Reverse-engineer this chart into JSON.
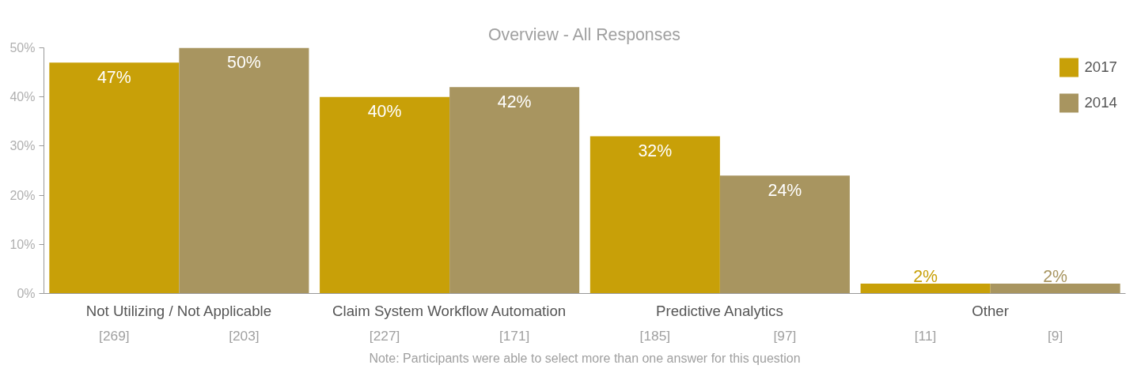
{
  "chart_data": {
    "type": "bar",
    "title": "Overview - All Responses",
    "categories": [
      "Not Utilizing / Not Applicable",
      "Claim System Workflow Automation",
      "Predictive Analytics",
      "Other"
    ],
    "series": [
      {
        "name": "2017",
        "color": "#c8a008",
        "values": [
          47,
          40,
          32,
          2
        ]
      },
      {
        "name": "2014",
        "color": "#a89560",
        "values": [
          50,
          42,
          24,
          2
        ]
      }
    ],
    "ylim": [
      0,
      50
    ],
    "yticks": [
      {
        "value": 0,
        "label": "0%"
      },
      {
        "value": 10,
        "label": "10%"
      },
      {
        "value": 20,
        "label": "20%"
      },
      {
        "value": 30,
        "label": "30%"
      },
      {
        "value": 40,
        "label": "40%"
      },
      {
        "value": 50,
        "label": "50%"
      }
    ],
    "value_labels": [
      [
        "47%",
        "40%",
        "32%",
        "2%"
      ],
      [
        "50%",
        "42%",
        "24%",
        "2%"
      ]
    ],
    "annotations": [
      "[269]",
      "[203]",
      "[227]",
      "[171]",
      "[185]",
      "[97]",
      "[11]",
      "[9]",
      "Note: Participants were able to select more than one answer for this question"
    ],
    "legend": "top right",
    "grid": false
  }
}
